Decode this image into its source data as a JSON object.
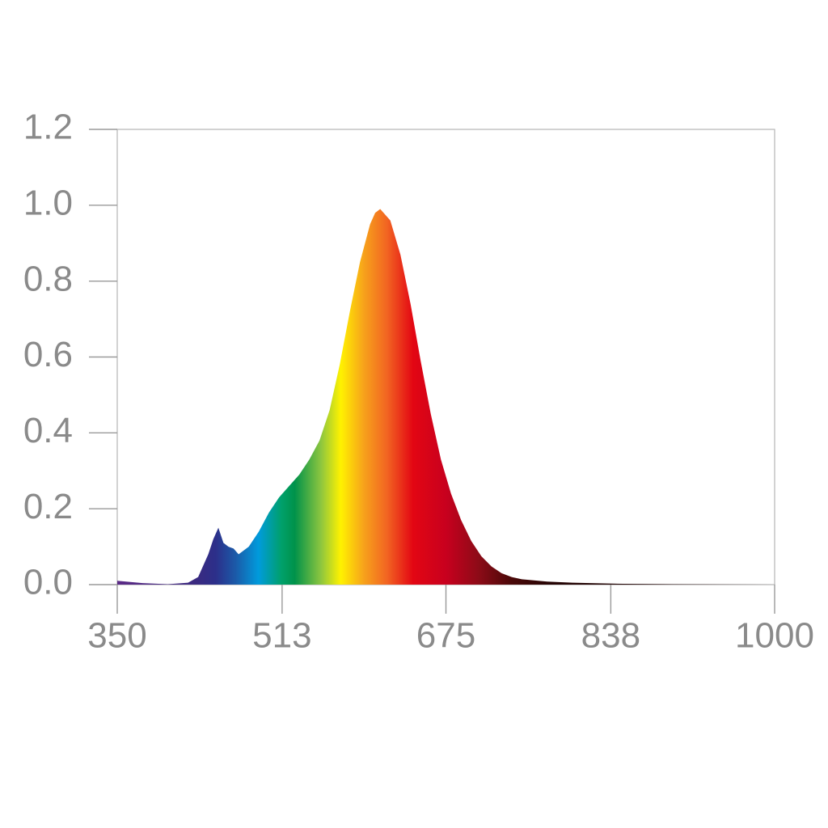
{
  "chart_data": {
    "type": "area",
    "x": [
      350,
      375,
      400,
      420,
      430,
      440,
      445,
      450,
      455,
      460,
      465,
      470,
      480,
      490,
      500,
      510,
      520,
      530,
      540,
      550,
      560,
      570,
      580,
      590,
      600,
      605,
      610,
      620,
      630,
      640,
      650,
      660,
      670,
      680,
      690,
      700,
      710,
      720,
      730,
      740,
      750,
      775,
      800,
      850,
      900,
      1000
    ],
    "values": [
      0.01,
      0.004,
      0.001,
      0.005,
      0.02,
      0.08,
      0.12,
      0.15,
      0.11,
      0.1,
      0.095,
      0.08,
      0.1,
      0.14,
      0.19,
      0.23,
      0.26,
      0.29,
      0.33,
      0.38,
      0.46,
      0.58,
      0.72,
      0.85,
      0.95,
      0.98,
      0.99,
      0.96,
      0.87,
      0.74,
      0.59,
      0.45,
      0.33,
      0.24,
      0.17,
      0.115,
      0.075,
      0.048,
      0.03,
      0.02,
      0.014,
      0.008,
      0.005,
      0.002,
      0.001,
      0
    ],
    "xlim": [
      350,
      1000
    ],
    "ylim": [
      0,
      1.2
    ],
    "xticks": [
      350,
      513,
      675,
      838,
      1000
    ],
    "yticks": [
      {
        "value": 0,
        "label": "0.0"
      },
      {
        "value": 0.2,
        "label": "0.2"
      },
      {
        "value": 0.4,
        "label": "0.4"
      },
      {
        "value": 0.6,
        "label": "0.6"
      },
      {
        "value": 0.8,
        "label": "0.8"
      },
      {
        "value": 1,
        "label": "1.0"
      },
      {
        "value": 1.2,
        "label": "1.2"
      }
    ]
  }
}
